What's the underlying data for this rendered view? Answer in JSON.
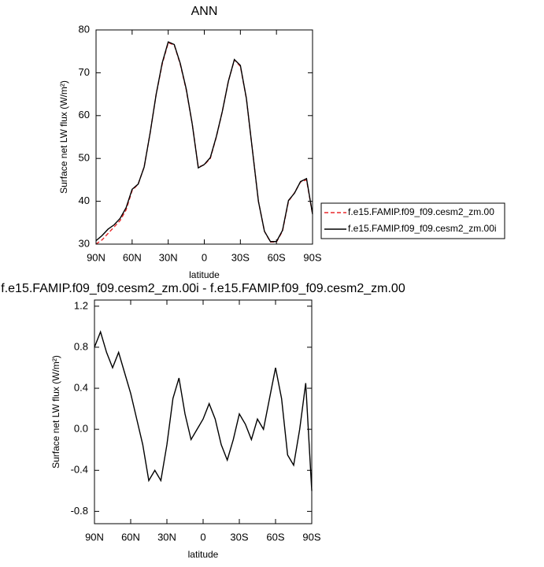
{
  "chart_data": [
    {
      "type": "line",
      "title": "ANN",
      "xlabel": "latitude",
      "ylabel": "Surface net LW flux (W/m²)",
      "x": [
        90,
        85,
        80,
        75,
        70,
        65,
        60,
        55,
        50,
        45,
        40,
        35,
        30,
        25,
        20,
        15,
        10,
        5,
        0,
        -5,
        -10,
        -15,
        -20,
        -25,
        -30,
        -35,
        -40,
        -45,
        -50,
        -55,
        -60,
        -65,
        -70,
        -75,
        -80,
        -85,
        -90
      ],
      "series": [
        {
          "name": "f.e15.FAMIP.f09_f09.cesm2_zm.00",
          "color": "#e8292b",
          "dashed": true,
          "values": [
            30,
            31,
            32.5,
            34,
            35.5,
            38,
            42.5,
            44,
            48,
            56,
            65,
            72,
            77,
            76.5,
            72,
            66,
            58,
            48,
            48.5,
            50,
            55,
            61,
            68,
            73,
            71.5,
            64,
            52,
            40,
            33,
            30.5,
            30.5,
            33,
            40,
            42,
            44.5,
            45,
            37
          ]
        },
        {
          "name": "f.e15.FAMIP.f09_f09.cesm2_zm.00i",
          "color": "#000000",
          "dashed": false,
          "values": [
            30.8,
            32,
            33.5,
            34.5,
            36,
            38.5,
            42.8,
            44,
            48,
            56,
            65,
            72.3,
            77.2,
            76.6,
            72.2,
            66.2,
            58,
            47.8,
            48.6,
            50.2,
            55.1,
            61,
            68,
            73.1,
            71.7,
            64,
            52,
            40,
            33,
            30.6,
            30.6,
            33.2,
            40.2,
            41.9,
            44.6,
            45.3,
            37
          ]
        }
      ],
      "xlim": [
        90,
        -90
      ],
      "xticks": [
        {
          "value": 90,
          "label": "90N"
        },
        {
          "value": 60,
          "label": "60N"
        },
        {
          "value": 30,
          "label": "30N"
        },
        0,
        {
          "value": -30,
          "label": "30S"
        },
        {
          "value": -60,
          "label": "60S"
        },
        {
          "value": -90,
          "label": "90S"
        }
      ],
      "ylim": [
        30,
        80
      ],
      "yticks": [
        30,
        40,
        50,
        60,
        70,
        80
      ]
    },
    {
      "type": "line",
      "title": "f.e15.FAMIP.f09_f09.cesm2_zm.00i - f.e15.FAMIP.f09_f09.cesm2_zm.00",
      "xlabel": "latitude",
      "ylabel": "Surface net LW flux (W/m²)",
      "x": [
        90,
        85,
        80,
        75,
        70,
        65,
        60,
        55,
        50,
        45,
        40,
        35,
        30,
        25,
        20,
        15,
        10,
        5,
        0,
        -5,
        -10,
        -15,
        -20,
        -25,
        -30,
        -35,
        -40,
        -45,
        -50,
        -55,
        -60,
        -65,
        -70,
        -75,
        -80,
        -85,
        -90
      ],
      "series": [
        {
          "color": "#000000",
          "dashed": false,
          "values": [
            0.8,
            0.95,
            0.75,
            0.6,
            0.75,
            0.55,
            0.35,
            0.1,
            -0.15,
            -0.5,
            -0.4,
            -0.5,
            -0.15,
            0.3,
            0.5,
            0.15,
            -0.1,
            0.0,
            0.1,
            0.25,
            0.1,
            -0.15,
            -0.3,
            -0.1,
            0.15,
            0.05,
            -0.1,
            0.1,
            0.0,
            0.3,
            0.6,
            0.3,
            -0.25,
            -0.35,
            0.0,
            0.45,
            -0.6
          ]
        }
      ],
      "xlim": [
        90,
        -90
      ],
      "xticks": [
        {
          "value": 90,
          "label": "90N"
        },
        {
          "value": 60,
          "label": "60N"
        },
        {
          "value": 30,
          "label": "30N"
        },
        0,
        {
          "value": -30,
          "label": "30S"
        },
        {
          "value": -60,
          "label": "60S"
        },
        {
          "value": -90,
          "label": "90S"
        }
      ],
      "ylim": [
        -0.92,
        1.26
      ],
      "yticks": [
        -0.8,
        -0.4,
        {
          "value": 0,
          "label": "0.0"
        },
        0.4,
        0.8,
        1.2
      ]
    }
  ]
}
